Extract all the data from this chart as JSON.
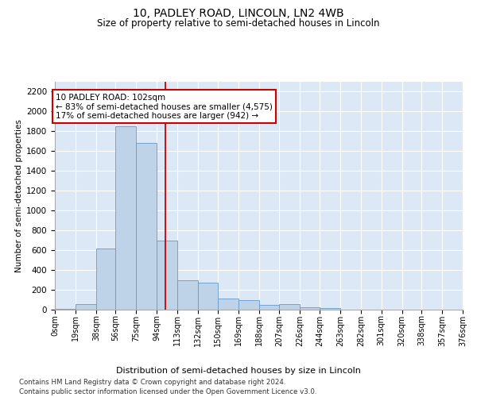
{
  "title": "10, PADLEY ROAD, LINCOLN, LN2 4WB",
  "subtitle": "Size of property relative to semi-detached houses in Lincoln",
  "xlabel": "Distribution of semi-detached houses by size in Lincoln",
  "ylabel": "Number of semi-detached properties",
  "footer_line1": "Contains HM Land Registry data © Crown copyright and database right 2024.",
  "footer_line2": "Contains public sector information licensed under the Open Government Licence v3.0.",
  "annotation_title": "10 PADLEY ROAD: 102sqm",
  "annotation_line1": "← 83% of semi-detached houses are smaller (4,575)",
  "annotation_line2": "17% of semi-detached houses are larger (942) →",
  "property_size": 102,
  "bin_edges": [
    0,
    19,
    38,
    56,
    75,
    94,
    113,
    132,
    150,
    169,
    188,
    207,
    226,
    244,
    263,
    282,
    301,
    320,
    338,
    357,
    376
  ],
  "bar_heights": [
    5,
    60,
    620,
    1850,
    1680,
    700,
    295,
    270,
    115,
    100,
    50,
    55,
    25,
    20,
    0,
    0,
    0,
    0,
    0,
    0
  ],
  "bar_color": "#bed3e8",
  "bar_edgecolor": "#6699cc",
  "redline_color": "#cc0000",
  "background_color": "#dce8f5",
  "grid_color": "#ffffff",
  "ylim": [
    0,
    2300
  ],
  "yticks": [
    0,
    200,
    400,
    600,
    800,
    1000,
    1200,
    1400,
    1600,
    1800,
    2000,
    2200
  ]
}
